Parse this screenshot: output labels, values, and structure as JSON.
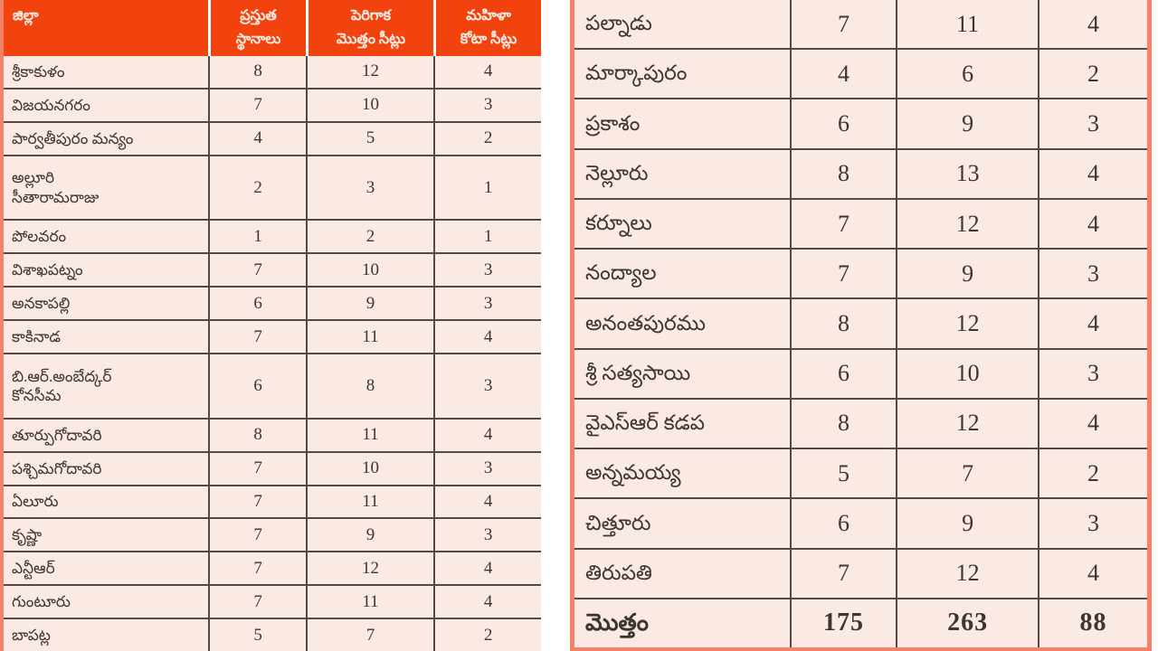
{
  "colors": {
    "header_bg": "#f2430f",
    "header_text": "#fdece3",
    "row_bg": "#fbe9e3",
    "outer_border": "#f2836a",
    "grid_line": "#4f4b49",
    "text": "#3b3633"
  },
  "left_table": {
    "header": [
      [
        "జిల్లా"
      ],
      [
        "ప్రస్తుత",
        "స్థానాలు"
      ],
      [
        "పెరిగాక",
        "మొత్తం సీట్లు"
      ],
      [
        "మహిళా",
        "కోటా సీట్లు"
      ]
    ],
    "rows": [
      {
        "district": [
          "శ్రీకాకుళం"
        ],
        "current": 8,
        "total": 12,
        "quota": 4
      },
      {
        "district": [
          "విజయనగరం"
        ],
        "current": 7,
        "total": 10,
        "quota": 3
      },
      {
        "district": [
          "పార్వతీపురం మన్యం"
        ],
        "current": 4,
        "total": 5,
        "quota": 2
      },
      {
        "district": [
          "అల్లూరి",
          "సీతారామరాజు"
        ],
        "current": 2,
        "total": 3,
        "quota": 1
      },
      {
        "district": [
          "పోలవరం"
        ],
        "current": 1,
        "total": 2,
        "quota": 1
      },
      {
        "district": [
          "విశాఖపట్నం"
        ],
        "current": 7,
        "total": 10,
        "quota": 3
      },
      {
        "district": [
          "అనకాపల్లి"
        ],
        "current": 6,
        "total": 9,
        "quota": 3
      },
      {
        "district": [
          "కాకినాడ"
        ],
        "current": 7,
        "total": 11,
        "quota": 4
      },
      {
        "district": [
          "బి.ఆర్.అంబేద్కర్",
          "కోనసీమ"
        ],
        "current": 6,
        "total": 8,
        "quota": 3
      },
      {
        "district": [
          "తూర్పుగోదావరి"
        ],
        "current": 8,
        "total": 11,
        "quota": 4
      },
      {
        "district": [
          "పశ్చిమగోదావరి"
        ],
        "current": 7,
        "total": 10,
        "quota": 3
      },
      {
        "district": [
          "ఏలూరు"
        ],
        "current": 7,
        "total": 11,
        "quota": 4
      },
      {
        "district": [
          "కృష్ణా"
        ],
        "current": 7,
        "total": 9,
        "quota": 3
      },
      {
        "district": [
          "ఎన్టీఆర్"
        ],
        "current": 7,
        "total": 12,
        "quota": 4
      },
      {
        "district": [
          "గుంటూరు"
        ],
        "current": 7,
        "total": 11,
        "quota": 4
      },
      {
        "district": [
          "బాపట్ల"
        ],
        "current": 5,
        "total": 7,
        "quota": 2
      }
    ]
  },
  "right_table": {
    "rows": [
      {
        "district": [
          "పల్నాడు"
        ],
        "current": 7,
        "total": 11,
        "quota": 4
      },
      {
        "district": [
          "మార్కాపురం"
        ],
        "current": 4,
        "total": 6,
        "quota": 2
      },
      {
        "district": [
          "ప్రకాశం"
        ],
        "current": 6,
        "total": 9,
        "quota": 3
      },
      {
        "district": [
          "నెల్లూరు"
        ],
        "current": 8,
        "total": 13,
        "quota": 4
      },
      {
        "district": [
          "కర్నూలు"
        ],
        "current": 7,
        "total": 12,
        "quota": 4
      },
      {
        "district": [
          "నంద్యాల"
        ],
        "current": 7,
        "total": 9,
        "quota": 3
      },
      {
        "district": [
          "అనంతపురము"
        ],
        "current": 8,
        "total": 12,
        "quota": 4
      },
      {
        "district": [
          "శ్రీ సత్యసాయి"
        ],
        "current": 6,
        "total": 10,
        "quota": 3
      },
      {
        "district": [
          "వైఎస్ఆర్ కడప"
        ],
        "current": 8,
        "total": 12,
        "quota": 4
      },
      {
        "district": [
          "అన్నమయ్య"
        ],
        "current": 5,
        "total": 7,
        "quota": 2
      },
      {
        "district": [
          "చిత్తూరు"
        ],
        "current": 6,
        "total": 9,
        "quota": 3
      },
      {
        "district": [
          "తిరుపతి"
        ],
        "current": 7,
        "total": 12,
        "quota": 4
      },
      {
        "district": [
          "మొత్తం"
        ],
        "current": 175,
        "total": 263,
        "quota": 88,
        "is_total": true
      }
    ]
  },
  "chart_data": {
    "type": "table",
    "title": "",
    "columns": [
      "జిల్లా",
      "ప్రస్తుత స్థానాలు",
      "పెరిగాక మొత్తం సీట్లు",
      "మహిళా కోటా సీట్లు"
    ],
    "rows": [
      [
        "శ్రీకాకుళం",
        8,
        12,
        4
      ],
      [
        "విజయనగరం",
        7,
        10,
        3
      ],
      [
        "పార్వతీపురం మన్యం",
        4,
        5,
        2
      ],
      [
        "అల్లూరి సీతారామరాజు",
        2,
        3,
        1
      ],
      [
        "పోలవరం",
        1,
        2,
        1
      ],
      [
        "విశాఖపట్నం",
        7,
        10,
        3
      ],
      [
        "అనకాపల్లి",
        6,
        9,
        3
      ],
      [
        "కాకినాడ",
        7,
        11,
        4
      ],
      [
        "బి.ఆర్.అంబేద్కర్ కోనసీమ",
        6,
        8,
        3
      ],
      [
        "తూర్పుగోదావరి",
        8,
        11,
        4
      ],
      [
        "పశ్చిమగోదావరి",
        7,
        10,
        3
      ],
      [
        "ఏలూరు",
        7,
        11,
        4
      ],
      [
        "కృష్ణా",
        7,
        9,
        3
      ],
      [
        "ఎన్టీఆర్",
        7,
        12,
        4
      ],
      [
        "గుంటూరు",
        7,
        11,
        4
      ],
      [
        "బాపట్ల",
        5,
        7,
        2
      ],
      [
        "పల్నాడు",
        7,
        11,
        4
      ],
      [
        "మార్కాపురం",
        4,
        6,
        2
      ],
      [
        "ప్రకాశం",
        6,
        9,
        3
      ],
      [
        "నెల్లూరు",
        8,
        13,
        4
      ],
      [
        "కర్నూలు",
        7,
        12,
        4
      ],
      [
        "నంద్యాల",
        7,
        9,
        3
      ],
      [
        "అనంతపురము",
        8,
        12,
        4
      ],
      [
        "శ్రీ సత్యసాయి",
        6,
        10,
        3
      ],
      [
        "వైఎస్ఆర్ కడప",
        8,
        12,
        4
      ],
      [
        "అన్నమయ్య",
        5,
        7,
        2
      ],
      [
        "చిత్తూరు",
        6,
        9,
        3
      ],
      [
        "తిరుపతి",
        7,
        12,
        4
      ]
    ],
    "total_row": {
      "label": "మొత్తం",
      "values": [
        175,
        263,
        88
      ]
    },
    "layout": {
      "split": "two side-by-side panels, 16 rows left with header, 12 rows + total right",
      "grid": true
    }
  }
}
